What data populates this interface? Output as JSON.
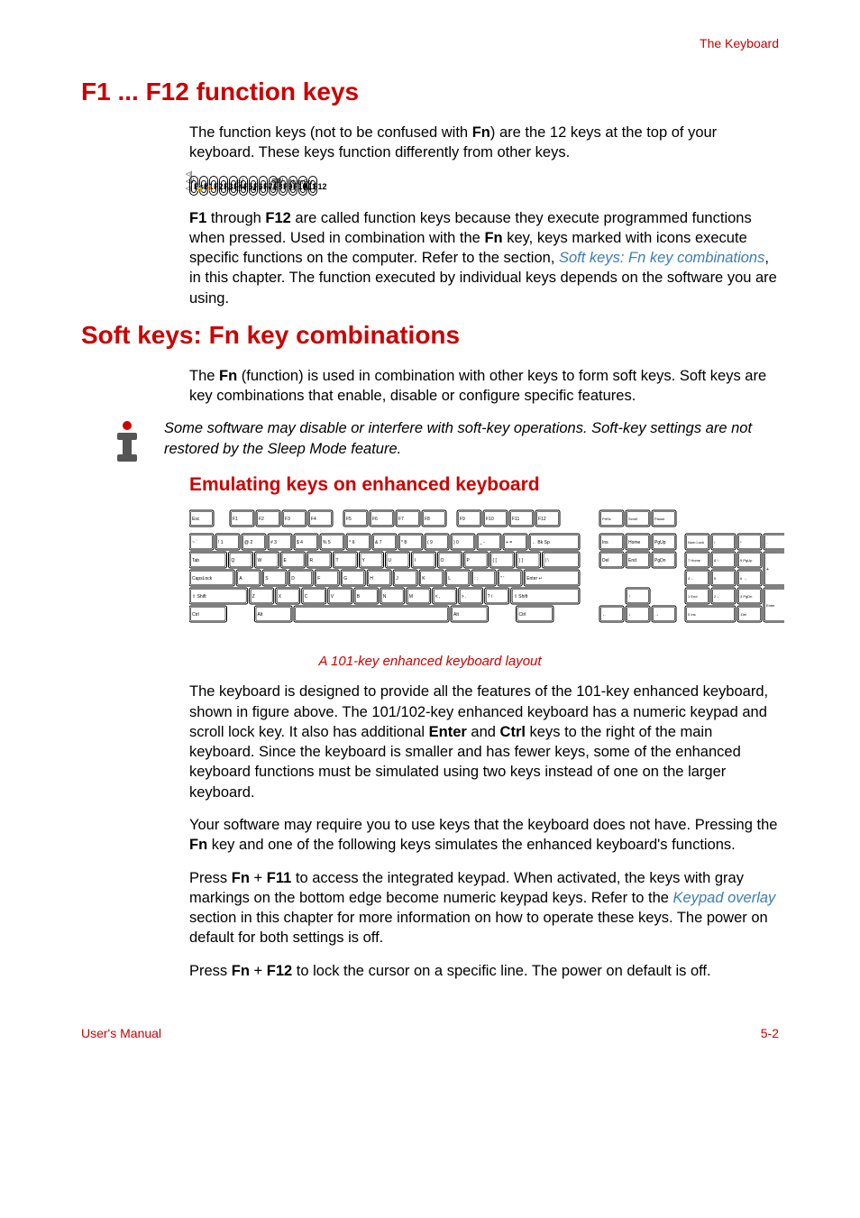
{
  "header": {
    "section": "The Keyboard"
  },
  "h1_1": "F1 ... F12 function keys",
  "para1": {
    "pre": "The function keys (not to be confused with ",
    "bold1": "Fn",
    "post": ") are the 12 keys at the top of your keyboard. These keys function differently from other keys."
  },
  "fkeys": [
    {
      "label": "Esc",
      "sub": "◁|◁|/◁|"
    },
    {
      "label": "F1",
      "sub": "🔒"
    },
    {
      "label": "F2",
      "sub": "🔅"
    },
    {
      "label": "F3",
      "sub": "↔"
    },
    {
      "label": "F4",
      "sub": "→▭"
    },
    {
      "label": "F5",
      "sub": "▭/▢"
    },
    {
      "label": "F6",
      "sub": "▼☼"
    },
    {
      "label": "F7",
      "sub": "▲☼"
    },
    {
      "label": "F8",
      "sub": "ᵒᵞᵢ"
    },
    {
      "label": "F9",
      "sub": "⌨/⊘"
    },
    {
      "label": "F10",
      "sub": ""
    },
    {
      "label": "F11",
      "sub": "Num Lk"
    },
    {
      "label": "F12",
      "sub": "Scr Lk"
    }
  ],
  "para2": {
    "b1": "F1",
    "t1": " through ",
    "b2": "F12",
    "t2": " are called function keys because they execute programmed functions when pressed. Used in combination with the ",
    "b3": "Fn",
    "t3": " key, keys marked with icons execute specific functions on the computer. Refer to the section, ",
    "link": "Soft keys: Fn key combinations",
    "t4": ", in this chapter. The function executed by individual keys depends on the software you are using."
  },
  "h1_2": "Soft keys: Fn key combinations",
  "para3": {
    "t1": "The ",
    "b1": "Fn",
    "t2": " (function) is used in combination with other keys to form soft keys. Soft keys are key combinations that enable, disable or configure specific features."
  },
  "info1": "Some software may disable or interfere with soft-key operations. Soft-key settings are not restored by the Sleep Mode feature.",
  "h2_1": "Emulating keys on enhanced keyboard",
  "caption1": "A 101-key enhanced keyboard layout",
  "para4": {
    "t1": "The keyboard is designed to provide all the features of the 101-key enhanced keyboard, shown in figure above. The 101/102-key enhanced keyboard has a numeric keypad and scroll lock key. It also has additional ",
    "b1": "Enter",
    "t2": " and ",
    "b2": "Ctrl",
    "t3": " keys to the right of the main keyboard. Since the keyboard is smaller and has fewer keys, some of the enhanced keyboard functions must be simulated using two keys instead of one on the larger keyboard."
  },
  "para5": {
    "t1": "Your software may require you to use keys that the keyboard does not have. Pressing the ",
    "b1": "Fn",
    "t2": " key and one of the following keys simulates the enhanced keyboard's functions."
  },
  "para6": {
    "t1": "Press ",
    "b1": "Fn",
    "t2": " + ",
    "b2": "F11",
    "t3": " to access the integrated keypad. When activated, the keys with gray markings on the bottom edge become numeric keypad keys. Refer to the ",
    "link": "Keypad overlay",
    "t4": " section in this chapter for more information on how to operate these keys. The power on default for both settings is off."
  },
  "para7": {
    "t1": "Press ",
    "b1": "Fn",
    "t2": " + ",
    "b2": "F12",
    "t3": " to lock the cursor on a specific line. The power on default is off."
  },
  "footer": {
    "left": "User's Manual",
    "right": "5-2"
  },
  "keyboard": {
    "row0": [
      "Esc",
      "F1",
      "F2",
      "F3",
      "F4",
      "F5",
      "F6",
      "F7",
      "F8",
      "F9",
      "F10",
      "F11",
      "F12"
    ],
    "row0_gaps_after": [
      0,
      4,
      8
    ],
    "top_right": [
      "PrtSc SysReq",
      "Scroll Lock",
      "Pause Break"
    ],
    "row1": [
      "~ `",
      "! 1",
      "@ 2",
      "# 3",
      "$ 4",
      "% 5",
      "^ 6",
      "& 7",
      "* 8",
      "( 9",
      ") 0",
      "_ -",
      "+ =",
      "← Bk Sp"
    ],
    "row2": [
      "Tab",
      "Q",
      "W",
      "E",
      "R",
      "T",
      "Y",
      "U",
      "I",
      "O",
      "P",
      "{ [",
      "} ]",
      "| \\"
    ],
    "row3": [
      "CapsLock",
      "A",
      "S",
      "D",
      "F",
      "G",
      "H",
      "J",
      "K",
      "L",
      ": ;",
      "\" '",
      "Enter ↵"
    ],
    "row4": [
      "⇧ Shift",
      "Z",
      "X",
      "C",
      "V",
      "B",
      "N",
      "M",
      "< ,",
      "> .",
      "? /",
      "⇧ Shift"
    ],
    "row5": [
      "Ctrl",
      "",
      "Alt",
      "",
      "Alt",
      "",
      "Ctrl"
    ],
    "nav1": [
      "Ins",
      "Home",
      "PgUp"
    ],
    "nav2": [
      "Del",
      "End",
      "PgDn"
    ],
    "arrows": [
      "↑",
      "←",
      "↓",
      "→"
    ],
    "numpad": [
      [
        "Num Lock",
        "/",
        "*",
        "-"
      ],
      [
        "7 Home",
        "8 ↑",
        "9 PgUp",
        "+"
      ],
      [
        "4 ←",
        "5",
        "6 →"
      ],
      [
        "1 End",
        "2 ↓",
        "3 PgDn",
        "Enter"
      ],
      [
        "0 Ins",
        ".Del"
      ]
    ]
  },
  "colors": {
    "red": "#cc0000",
    "blue": "#3b7db9",
    "black": "#000000"
  }
}
